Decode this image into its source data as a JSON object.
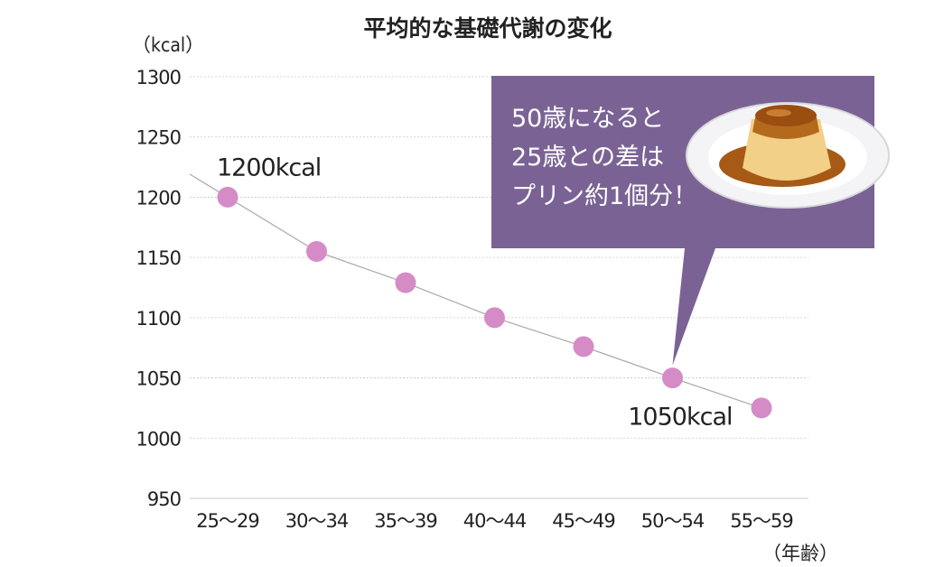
{
  "chart_data": {
    "type": "line",
    "title": "平均的な基礎代謝の変化",
    "ylabel": "（kcal）",
    "xlabel": "（年齢）",
    "categories": [
      "25〜29",
      "30〜34",
      "35〜39",
      "40〜44",
      "45〜49",
      "50〜54",
      "55〜59"
    ],
    "values": [
      1200,
      1155,
      1129,
      1100,
      1076,
      1050,
      1025
    ],
    "ylim": [
      950,
      1300
    ],
    "yticks": [
      950,
      1000,
      1050,
      1100,
      1150,
      1200,
      1250,
      1300
    ],
    "grid": true,
    "annotations": [
      {
        "text": "1200kcal",
        "category": "25〜29",
        "value": 1200
      },
      {
        "text": "1050kcal",
        "category": "50〜54",
        "value": 1050
      }
    ],
    "callout": {
      "lines": [
        "50歳になると",
        "25歳との差は",
        "プリン約1個分！"
      ],
      "points_to": "50〜54",
      "background": "#7a6394",
      "image": "pudding"
    },
    "colors": {
      "marker": "#d58cc6",
      "line": "#a8a8a8",
      "grid": "#c8c8c8"
    }
  }
}
